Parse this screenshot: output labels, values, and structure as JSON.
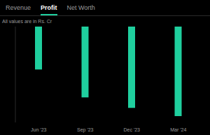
{
  "tabs": {
    "items": [
      "Revenue",
      "Profit",
      "Net Worth"
    ],
    "active": "Profit"
  },
  "chart_data": {
    "type": "bar",
    "subtitle": "All values are in Rs. Cr",
    "categories": [
      "Jun '23",
      "Sep '23",
      "Dec '23",
      "Mar '24"
    ],
    "values": [
      -103,
      -170,
      -195,
      -215
    ],
    "color": "#1fcf9e",
    "ylim": [
      -230,
      0
    ],
    "grid": false,
    "data_labels": true,
    "tick_labels": "x"
  }
}
